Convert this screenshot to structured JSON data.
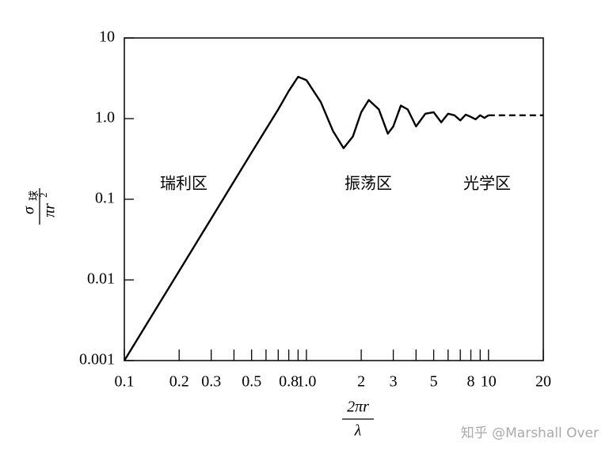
{
  "chart_data": {
    "type": "line",
    "xscale": "log",
    "yscale": "log",
    "grid": false,
    "xlim": [
      0.1,
      20
    ],
    "ylim": [
      0.001,
      10
    ],
    "xticks": [
      0.1,
      0.2,
      0.3,
      0.5,
      0.8,
      {
        "value": 1,
        "label": "1.0"
      },
      2,
      3,
      5,
      8,
      10,
      20
    ],
    "xminorticks": [
      0.4,
      0.6,
      0.7,
      0.9,
      4,
      6,
      7,
      9
    ],
    "yticks": [
      0.001,
      0.01,
      0.1,
      {
        "value": 1,
        "label": "1.0"
      },
      10
    ],
    "xlabel": {
      "numerator": "2πr",
      "denominator": "λ"
    },
    "ylabel": {
      "numerator": "σ",
      "numerator_sub": "球",
      "denominator": "πr",
      "denominator_sup": "2"
    },
    "annotations": [
      "瑞利区",
      "振荡区",
      "光学区"
    ],
    "watermark": "知乎 @Marshall Over",
    "series": [
      {
        "color": "#000000",
        "dash": false,
        "x": [
          0.1,
          0.2,
          0.3,
          0.5,
          0.7,
          0.8,
          0.9,
          1.0,
          1.2,
          1.4,
          1.6,
          1.8,
          2.0,
          2.2,
          2.5,
          2.8,
          3.0,
          3.3,
          3.6,
          4.0,
          4.5,
          5.0,
          5.5,
          6.0,
          6.5,
          7.0,
          7.5,
          8.0,
          8.5,
          9.0,
          9.5,
          10
        ],
        "values": [
          0.001,
          0.0129,
          0.0576,
          0.38,
          1.3,
          2.2,
          3.3,
          3.0,
          1.6,
          0.7,
          0.43,
          0.6,
          1.2,
          1.7,
          1.3,
          0.65,
          0.8,
          1.45,
          1.3,
          0.8,
          1.15,
          1.2,
          0.9,
          1.15,
          1.1,
          0.95,
          1.12,
          1.05,
          0.98,
          1.1,
          1.02,
          1.1
        ]
      },
      {
        "color": "#000000",
        "dash": true,
        "x": [
          10,
          20
        ],
        "values": [
          1.1,
          1.1
        ]
      }
    ]
  }
}
